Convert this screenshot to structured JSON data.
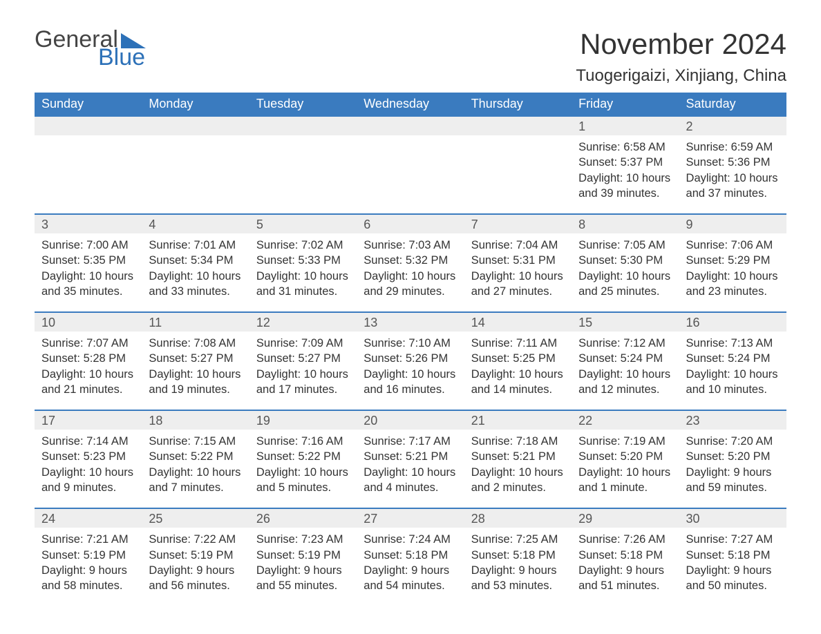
{
  "brand": {
    "word1": "General",
    "word2": "Blue",
    "accent_color": "#2d71b8"
  },
  "title": "November 2024",
  "location": "Tuogerigaizi, Xinjiang, China",
  "colors": {
    "header_bg": "#3a7bbf",
    "header_text": "#ffffff",
    "daynum_bg": "#eeeeee",
    "row_border": "#3a7bbf",
    "body_text": "#333333",
    "page_bg": "#ffffff"
  },
  "typography": {
    "title_fontsize": 42,
    "location_fontsize": 24,
    "header_fontsize": 18,
    "cell_fontsize": 16.5
  },
  "weekdays": [
    "Sunday",
    "Monday",
    "Tuesday",
    "Wednesday",
    "Thursday",
    "Friday",
    "Saturday"
  ],
  "labels": {
    "sunrise": "Sunrise:",
    "sunset": "Sunset:",
    "daylight": "Daylight:"
  },
  "weeks": [
    [
      null,
      null,
      null,
      null,
      null,
      {
        "day": "1",
        "sunrise": "6:58 AM",
        "sunset": "5:37 PM",
        "daylight": "10 hours and 39 minutes."
      },
      {
        "day": "2",
        "sunrise": "6:59 AM",
        "sunset": "5:36 PM",
        "daylight": "10 hours and 37 minutes."
      }
    ],
    [
      {
        "day": "3",
        "sunrise": "7:00 AM",
        "sunset": "5:35 PM",
        "daylight": "10 hours and 35 minutes."
      },
      {
        "day": "4",
        "sunrise": "7:01 AM",
        "sunset": "5:34 PM",
        "daylight": "10 hours and 33 minutes."
      },
      {
        "day": "5",
        "sunrise": "7:02 AM",
        "sunset": "5:33 PM",
        "daylight": "10 hours and 31 minutes."
      },
      {
        "day": "6",
        "sunrise": "7:03 AM",
        "sunset": "5:32 PM",
        "daylight": "10 hours and 29 minutes."
      },
      {
        "day": "7",
        "sunrise": "7:04 AM",
        "sunset": "5:31 PM",
        "daylight": "10 hours and 27 minutes."
      },
      {
        "day": "8",
        "sunrise": "7:05 AM",
        "sunset": "5:30 PM",
        "daylight": "10 hours and 25 minutes."
      },
      {
        "day": "9",
        "sunrise": "7:06 AM",
        "sunset": "5:29 PM",
        "daylight": "10 hours and 23 minutes."
      }
    ],
    [
      {
        "day": "10",
        "sunrise": "7:07 AM",
        "sunset": "5:28 PM",
        "daylight": "10 hours and 21 minutes."
      },
      {
        "day": "11",
        "sunrise": "7:08 AM",
        "sunset": "5:27 PM",
        "daylight": "10 hours and 19 minutes."
      },
      {
        "day": "12",
        "sunrise": "7:09 AM",
        "sunset": "5:27 PM",
        "daylight": "10 hours and 17 minutes."
      },
      {
        "day": "13",
        "sunrise": "7:10 AM",
        "sunset": "5:26 PM",
        "daylight": "10 hours and 16 minutes."
      },
      {
        "day": "14",
        "sunrise": "7:11 AM",
        "sunset": "5:25 PM",
        "daylight": "10 hours and 14 minutes."
      },
      {
        "day": "15",
        "sunrise": "7:12 AM",
        "sunset": "5:24 PM",
        "daylight": "10 hours and 12 minutes."
      },
      {
        "day": "16",
        "sunrise": "7:13 AM",
        "sunset": "5:24 PM",
        "daylight": "10 hours and 10 minutes."
      }
    ],
    [
      {
        "day": "17",
        "sunrise": "7:14 AM",
        "sunset": "5:23 PM",
        "daylight": "10 hours and 9 minutes."
      },
      {
        "day": "18",
        "sunrise": "7:15 AM",
        "sunset": "5:22 PM",
        "daylight": "10 hours and 7 minutes."
      },
      {
        "day": "19",
        "sunrise": "7:16 AM",
        "sunset": "5:22 PM",
        "daylight": "10 hours and 5 minutes."
      },
      {
        "day": "20",
        "sunrise": "7:17 AM",
        "sunset": "5:21 PM",
        "daylight": "10 hours and 4 minutes."
      },
      {
        "day": "21",
        "sunrise": "7:18 AM",
        "sunset": "5:21 PM",
        "daylight": "10 hours and 2 minutes."
      },
      {
        "day": "22",
        "sunrise": "7:19 AM",
        "sunset": "5:20 PM",
        "daylight": "10 hours and 1 minute."
      },
      {
        "day": "23",
        "sunrise": "7:20 AM",
        "sunset": "5:20 PM",
        "daylight": "9 hours and 59 minutes."
      }
    ],
    [
      {
        "day": "24",
        "sunrise": "7:21 AM",
        "sunset": "5:19 PM",
        "daylight": "9 hours and 58 minutes."
      },
      {
        "day": "25",
        "sunrise": "7:22 AM",
        "sunset": "5:19 PM",
        "daylight": "9 hours and 56 minutes."
      },
      {
        "day": "26",
        "sunrise": "7:23 AM",
        "sunset": "5:19 PM",
        "daylight": "9 hours and 55 minutes."
      },
      {
        "day": "27",
        "sunrise": "7:24 AM",
        "sunset": "5:18 PM",
        "daylight": "9 hours and 54 minutes."
      },
      {
        "day": "28",
        "sunrise": "7:25 AM",
        "sunset": "5:18 PM",
        "daylight": "9 hours and 53 minutes."
      },
      {
        "day": "29",
        "sunrise": "7:26 AM",
        "sunset": "5:18 PM",
        "daylight": "9 hours and 51 minutes."
      },
      {
        "day": "30",
        "sunrise": "7:27 AM",
        "sunset": "5:18 PM",
        "daylight": "9 hours and 50 minutes."
      }
    ]
  ]
}
